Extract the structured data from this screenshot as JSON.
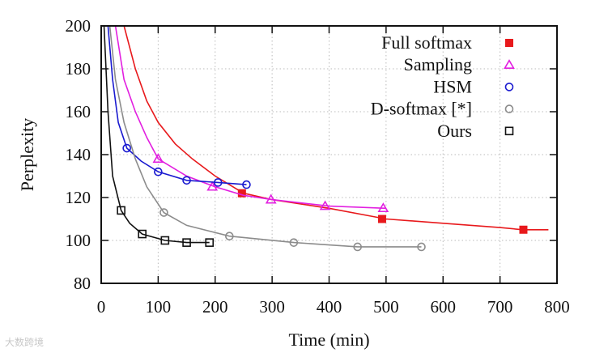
{
  "watermark": "大数跨境",
  "chart_data": {
    "type": "line",
    "title": "",
    "xlabel": "Time (min)",
    "ylabel": "Perplexity",
    "xlim": [
      0,
      800
    ],
    "ylim": [
      80,
      200
    ],
    "xticks": [
      0,
      100,
      200,
      300,
      400,
      500,
      600,
      700,
      800
    ],
    "yticks": [
      80,
      100,
      120,
      140,
      160,
      180,
      200
    ],
    "grid": true,
    "legend_position": "top-right",
    "series": [
      {
        "name": "Full softmax",
        "color": "#e8191c",
        "marker": "filled-square",
        "x": [
          40,
          60,
          80,
          100,
          130,
          160,
          200,
          250,
          300,
          400,
          500,
          600,
          700,
          740,
          785
        ],
        "y": [
          200,
          180,
          165,
          155,
          145,
          138,
          130,
          122,
          119,
          115,
          110,
          108,
          106,
          105,
          105
        ],
        "markers_x": [
          247,
          493,
          741
        ],
        "markers_y": [
          122,
          110,
          105
        ]
      },
      {
        "name": "Sampling",
        "color": "#e21fe0",
        "marker": "triangle",
        "x": [
          25,
          40,
          60,
          80,
          100,
          150,
          200,
          250,
          300,
          400,
          500
        ],
        "y": [
          200,
          175,
          160,
          148,
          138,
          130,
          125,
          121,
          119,
          116,
          115
        ],
        "markers_x": [
          100,
          195,
          298,
          393,
          495
        ],
        "markers_y": [
          138,
          125,
          119,
          116,
          115
        ]
      },
      {
        "name": "HSM",
        "color": "#1a1ad0",
        "marker": "circle",
        "x": [
          12,
          20,
          30,
          45,
          70,
          100,
          150,
          205,
          255
        ],
        "y": [
          200,
          175,
          155,
          143,
          137,
          132,
          128,
          127,
          126
        ],
        "markers_x": [
          45,
          100,
          150,
          205,
          255
        ],
        "markers_y": [
          143,
          132,
          128,
          127,
          126
        ]
      },
      {
        "name": "D-softmax [*]",
        "color": "#8c8c8c",
        "marker": "circle",
        "x": [
          15,
          25,
          40,
          60,
          80,
          110,
          150,
          225,
          338,
          450,
          562
        ],
        "y": [
          200,
          175,
          155,
          138,
          125,
          113,
          107,
          102,
          99,
          97,
          97
        ],
        "markers_x": [
          110,
          225,
          338,
          450,
          562
        ],
        "markers_y": [
          113,
          102,
          99,
          97,
          97
        ]
      },
      {
        "name": "Ours",
        "color": "#111111",
        "marker": "square",
        "x": [
          5,
          12,
          20,
          35,
          50,
          72,
          112,
          150,
          190
        ],
        "y": [
          200,
          160,
          130,
          114,
          108,
          103,
          100,
          99,
          99
        ],
        "markers_x": [
          35,
          72,
          112,
          150,
          190
        ],
        "markers_y": [
          114,
          103,
          100,
          99,
          99
        ]
      }
    ]
  }
}
